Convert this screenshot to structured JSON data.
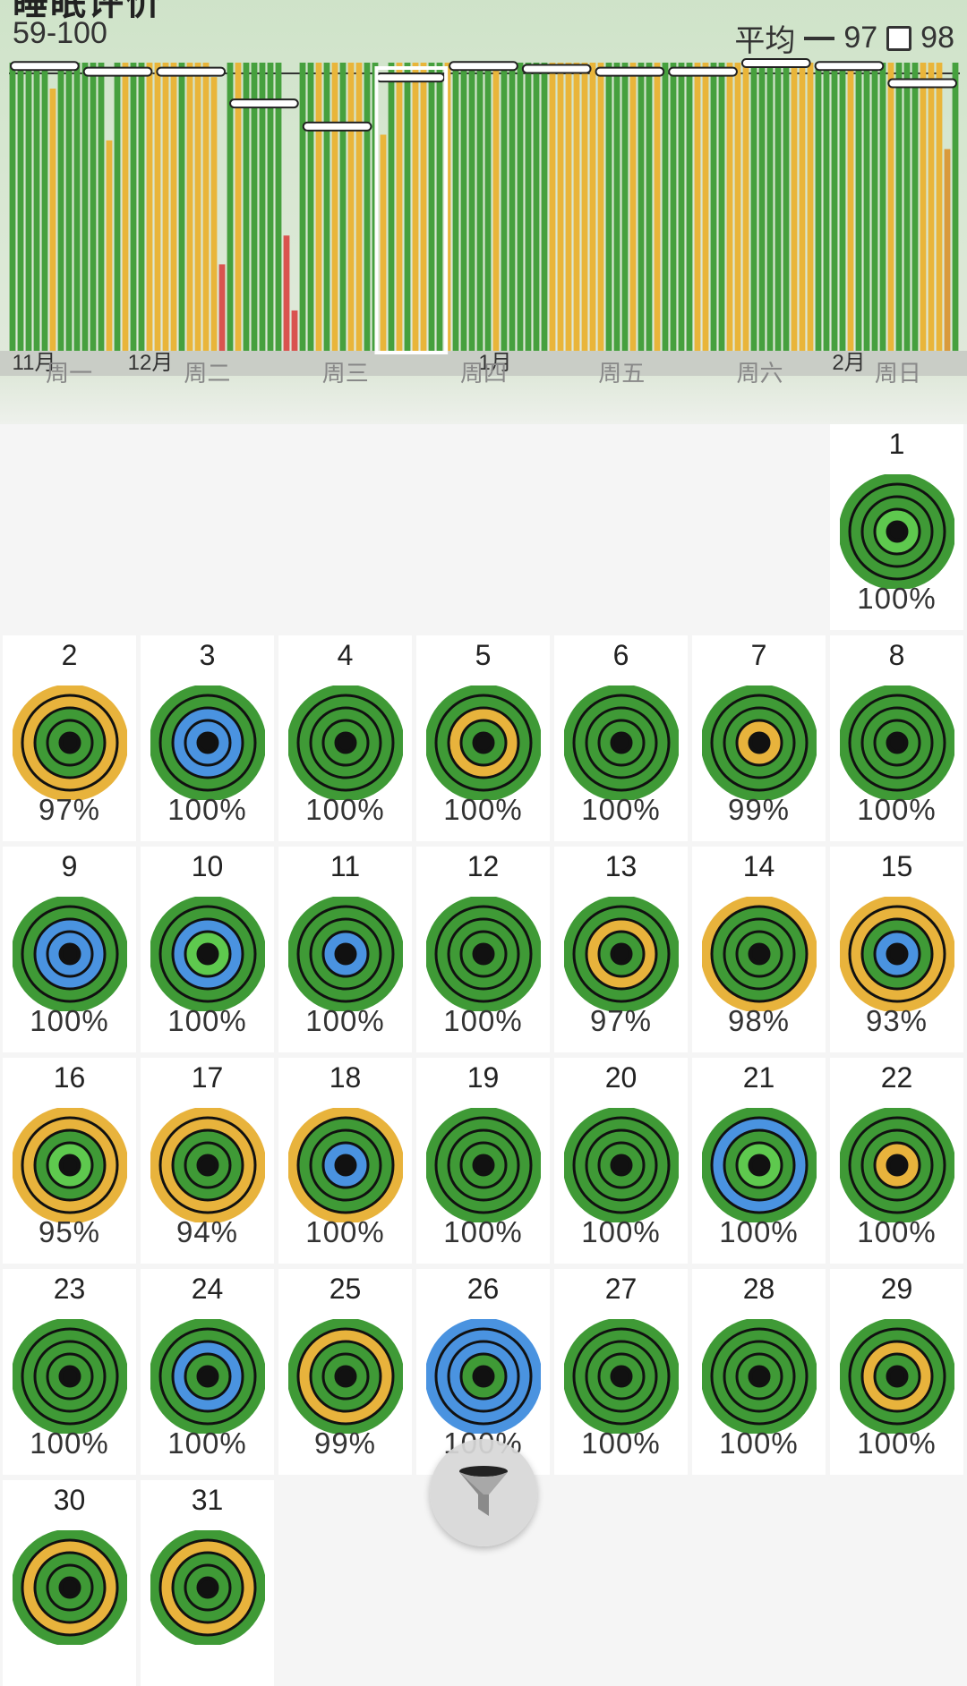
{
  "header": {
    "title": "睡眠评价",
    "range": "59-100",
    "legend": {
      "avg_label": "平均",
      "avg_value": "97",
      "box_value": "98"
    }
  },
  "chart_data": {
    "type": "bar",
    "month_labels": [
      "11月",
      "12月",
      "1月",
      "2月"
    ],
    "values": [
      100,
      100,
      100,
      100,
      100,
      91,
      100,
      100,
      100,
      100,
      100,
      100,
      73,
      100,
      100,
      100,
      100,
      100,
      100,
      100,
      100,
      100,
      100,
      100,
      100,
      95,
      30,
      100,
      100,
      100,
      100,
      100,
      100,
      100,
      40,
      14,
      100,
      100,
      100,
      100,
      100,
      100,
      100,
      100,
      100,
      100,
      75,
      100,
      100,
      100,
      100,
      100,
      100,
      100,
      100,
      100,
      100,
      100,
      100,
      100,
      100,
      100,
      100,
      100,
      100,
      100,
      100,
      100,
      100,
      100,
      100,
      100,
      100,
      100,
      100,
      100,
      100,
      100,
      100,
      100,
      100,
      100,
      100,
      100,
      100,
      100,
      100,
      100,
      100,
      100,
      100,
      100,
      100,
      100,
      100,
      100,
      100,
      100,
      100,
      100,
      100,
      100,
      100,
      100,
      100,
      100,
      100,
      100,
      100,
      100,
      100,
      100,
      100,
      100,
      100,
      100,
      70,
      100
    ],
    "colors": [
      "g",
      "g",
      "g",
      "g",
      "g",
      "o",
      "g",
      "g",
      "g",
      "g",
      "g",
      "g",
      "o",
      "g",
      "o",
      "g",
      "g",
      "o",
      "o",
      "o",
      "o",
      "g",
      "o",
      "o",
      "o",
      "o",
      "r",
      "g",
      "o",
      "g",
      "g",
      "g",
      "g",
      "g",
      "r",
      "r",
      "g",
      "g",
      "o",
      "g",
      "o",
      "g",
      "o",
      "o",
      "g",
      "g",
      "o",
      "g",
      "o",
      "g",
      "o",
      "o",
      "g",
      "g",
      "o",
      "g",
      "g",
      "g",
      "g",
      "g",
      "o",
      "g",
      "g",
      "g",
      "g",
      "g",
      "g",
      "o",
      "o",
      "o",
      "o",
      "o",
      "o",
      "o",
      "g",
      "g",
      "g",
      "o",
      "g",
      "g",
      "o",
      "g",
      "g",
      "g",
      "g",
      "o",
      "o",
      "g",
      "g",
      "o",
      "o",
      "o",
      "g",
      "g",
      "g",
      "g",
      "g",
      "o",
      "o",
      "o",
      "g",
      "g",
      "g",
      "g",
      "o",
      "g",
      "g",
      "g",
      "g",
      "o",
      "g",
      "g",
      "g",
      "o",
      "o",
      "o",
      "d",
      "g"
    ],
    "weekly_average_markers": [
      99,
      97,
      97,
      86,
      78,
      95,
      99,
      98,
      97,
      97,
      100,
      99,
      93
    ],
    "highlighted_week": 5,
    "colors_hex": {
      "g": "#46a03e",
      "o": "#e9b53a",
      "r": "#d9534f",
      "d": "#d99a3c"
    }
  },
  "weekdays": [
    "周一",
    "周二",
    "周三",
    "周四",
    "周五",
    "周六",
    "周日"
  ],
  "days": [
    {
      "day": "1",
      "pct": "100%",
      "rings": [
        "g",
        "g",
        "g",
        "l"
      ]
    },
    {
      "day": "2",
      "pct": "97%",
      "rings": [
        "o",
        "o",
        "g",
        "g"
      ]
    },
    {
      "day": "3",
      "pct": "100%",
      "rings": [
        "g",
        "g",
        "b",
        "b"
      ]
    },
    {
      "day": "4",
      "pct": "100%",
      "rings": [
        "g",
        "g",
        "g",
        "g"
      ]
    },
    {
      "day": "5",
      "pct": "100%",
      "rings": [
        "g",
        "g",
        "o",
        "g"
      ]
    },
    {
      "day": "6",
      "pct": "100%",
      "rings": [
        "g",
        "g",
        "g",
        "g"
      ]
    },
    {
      "day": "7",
      "pct": "99%",
      "rings": [
        "g",
        "g",
        "g",
        "o"
      ]
    },
    {
      "day": "8",
      "pct": "100%",
      "rings": [
        "g",
        "g",
        "g",
        "g"
      ]
    },
    {
      "day": "9",
      "pct": "100%",
      "rings": [
        "g",
        "g",
        "b",
        "b"
      ]
    },
    {
      "day": "10",
      "pct": "100%",
      "rings": [
        "g",
        "g",
        "b",
        "l"
      ]
    },
    {
      "day": "11",
      "pct": "100%",
      "rings": [
        "g",
        "g",
        "g",
        "b"
      ]
    },
    {
      "day": "12",
      "pct": "100%",
      "rings": [
        "g",
        "g",
        "g",
        "g"
      ]
    },
    {
      "day": "13",
      "pct": "97%",
      "rings": [
        "g",
        "g",
        "o",
        "g"
      ]
    },
    {
      "day": "14",
      "pct": "98%",
      "rings": [
        "o",
        "g",
        "g",
        "g"
      ]
    },
    {
      "day": "15",
      "pct": "93%",
      "rings": [
        "o",
        "o",
        "g",
        "b"
      ]
    },
    {
      "day": "16",
      "pct": "95%",
      "rings": [
        "o",
        "o",
        "g",
        "l"
      ]
    },
    {
      "day": "17",
      "pct": "94%",
      "rings": [
        "o",
        "o",
        "g",
        "g"
      ]
    },
    {
      "day": "18",
      "pct": "100%",
      "rings": [
        "o",
        "g",
        "g",
        "b"
      ]
    },
    {
      "day": "19",
      "pct": "100%",
      "rings": [
        "g",
        "g",
        "g",
        "g"
      ]
    },
    {
      "day": "20",
      "pct": "100%",
      "rings": [
        "g",
        "g",
        "g",
        "g"
      ]
    },
    {
      "day": "21",
      "pct": "100%",
      "rings": [
        "g",
        "b",
        "g",
        "l"
      ]
    },
    {
      "day": "22",
      "pct": "100%",
      "rings": [
        "g",
        "g",
        "g",
        "o"
      ]
    },
    {
      "day": "23",
      "pct": "100%",
      "rings": [
        "g",
        "g",
        "g",
        "g"
      ]
    },
    {
      "day": "24",
      "pct": "100%",
      "rings": [
        "g",
        "g",
        "b",
        "g"
      ]
    },
    {
      "day": "25",
      "pct": "99%",
      "rings": [
        "g",
        "o",
        "g",
        "g"
      ]
    },
    {
      "day": "26",
      "pct": "100%",
      "rings": [
        "b",
        "b",
        "b",
        "g"
      ]
    },
    {
      "day": "27",
      "pct": "100%",
      "rings": [
        "g",
        "g",
        "g",
        "g"
      ]
    },
    {
      "day": "28",
      "pct": "100%",
      "rings": [
        "g",
        "g",
        "g",
        "g"
      ]
    },
    {
      "day": "29",
      "pct": "100%",
      "rings": [
        "g",
        "g",
        "o",
        "g"
      ]
    },
    {
      "day": "30",
      "pct": "",
      "rings": [
        "g",
        "o",
        "g",
        "g"
      ]
    },
    {
      "day": "31",
      "pct": "",
      "rings": [
        "g",
        "o",
        "g",
        "g"
      ]
    }
  ],
  "ring_colors": {
    "g": "#3f9a36",
    "l": "#5ec94e",
    "o": "#e8b33c",
    "b": "#4a93e0"
  },
  "filter": {
    "icon": "funnel-icon"
  }
}
